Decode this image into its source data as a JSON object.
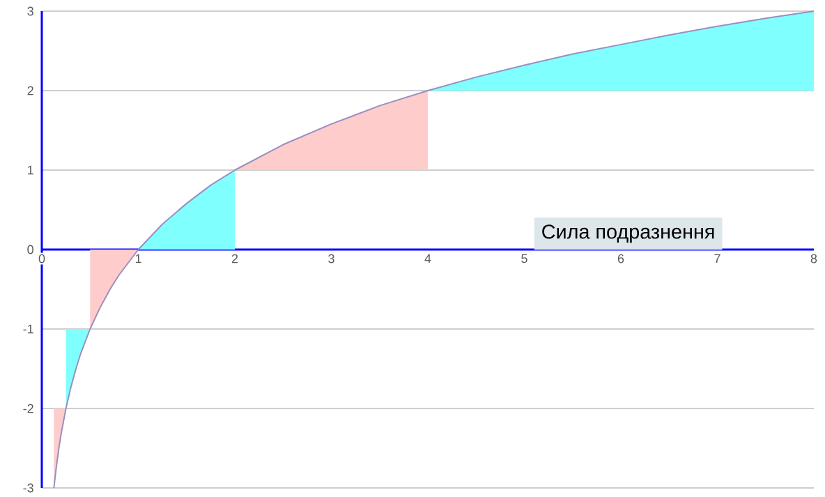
{
  "chart_data": {
    "type": "area",
    "xlabel": "Сила подразнення",
    "xlim": [
      0,
      8
    ],
    "ylim": [
      -3,
      3
    ],
    "xticks": [
      0,
      1,
      2,
      3,
      4,
      5,
      6,
      7,
      8
    ],
    "yticks": [
      -3,
      -2,
      -1,
      0,
      1,
      2,
      3
    ],
    "grid": "y",
    "series": [
      {
        "color": "#ffcccc",
        "x": [
          0.125,
          0.15,
          0.1768,
          0.2,
          0.25
        ],
        "values": [
          -3,
          -2.74,
          -2.5,
          -2.32,
          -2
        ]
      },
      {
        "color": "#80ffff",
        "x": [
          0.25,
          0.3,
          0.354,
          0.4,
          0.5
        ],
        "values": [
          -2,
          -1.74,
          -1.5,
          -1.32,
          -1
        ]
      },
      {
        "color": "#ffcccc",
        "x": [
          0.5,
          0.6,
          0.707,
          0.8,
          1
        ],
        "values": [
          -1,
          -0.74,
          -0.5,
          -0.32,
          0
        ]
      },
      {
        "color": "#80ffff",
        "x": [
          1,
          1.25,
          1.5,
          1.75,
          2
        ],
        "values": [
          0,
          0.32,
          0.58,
          0.81,
          1
        ]
      },
      {
        "color": "#ffcccc",
        "x": [
          2,
          2.5,
          3,
          3.5,
          4
        ],
        "values": [
          1,
          1.32,
          1.58,
          1.81,
          2
        ]
      },
      {
        "color": "#80ffff",
        "x": [
          4,
          4.5,
          5,
          5.5,
          6,
          6.5,
          7,
          7.5,
          8
        ],
        "values": [
          2,
          2.17,
          2.32,
          2.46,
          2.58,
          2.7,
          2.81,
          2.91,
          3
        ]
      },
      {
        "type": "line",
        "color": "#9a8fc0",
        "x": [
          0.125,
          0.15,
          0.1768,
          0.2,
          0.25,
          0.3,
          0.354,
          0.4,
          0.5,
          0.6,
          0.707,
          0.8,
          1,
          1.25,
          1.5,
          1.75,
          2,
          2.5,
          3,
          3.5,
          4,
          4.5,
          5,
          5.5,
          6,
          6.5,
          7,
          7.5,
          8
        ],
        "values": [
          -3,
          -2.74,
          -2.5,
          -2.32,
          -2,
          -1.74,
          -1.5,
          -1.32,
          -1,
          -0.74,
          -0.5,
          -0.32,
          0,
          0.32,
          0.58,
          0.81,
          1,
          1.32,
          1.58,
          1.81,
          2,
          2.17,
          2.32,
          2.46,
          2.58,
          2.7,
          2.81,
          2.91,
          3
        ]
      }
    ]
  }
}
